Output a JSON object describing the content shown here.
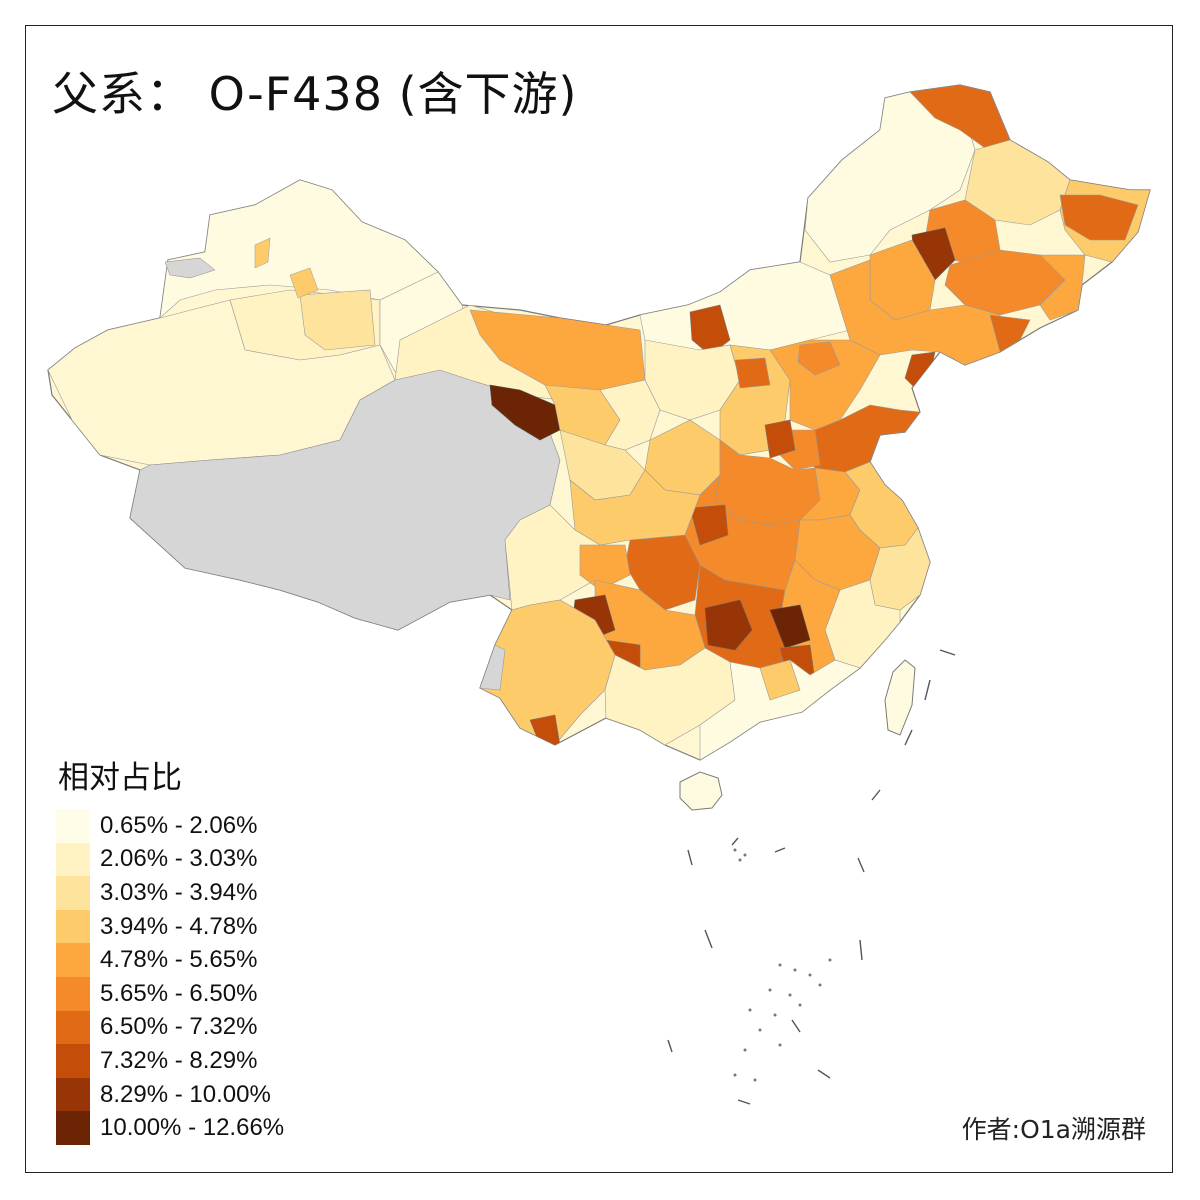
{
  "title": "父系： O-F438 (含下游)",
  "legend": {
    "title": "相对占比",
    "classes": [
      {
        "label": "0.65% - 2.06%",
        "color": "#fffde8"
      },
      {
        "label": "2.06% - 3.03%",
        "color": "#fff3c4"
      },
      {
        "label": "3.03% - 3.94%",
        "color": "#fee39c"
      },
      {
        "label": "3.94% - 4.78%",
        "color": "#fecb6b"
      },
      {
        "label": "4.78% - 5.65%",
        "color": "#fda83f"
      },
      {
        "label": "5.65% - 6.50%",
        "color": "#f48a2a"
      },
      {
        "label": "6.50% - 7.32%",
        "color": "#e16a16"
      },
      {
        "label": "7.32% - 8.29%",
        "color": "#c44d0a"
      },
      {
        "label": "8.29% - 10.00%",
        "color": "#973506"
      },
      {
        "label": "10.00% - 12.66%",
        "color": "#6b2505"
      }
    ]
  },
  "no_data_color": "#d6d6d6",
  "credit": "作者:O1a溯源群"
}
